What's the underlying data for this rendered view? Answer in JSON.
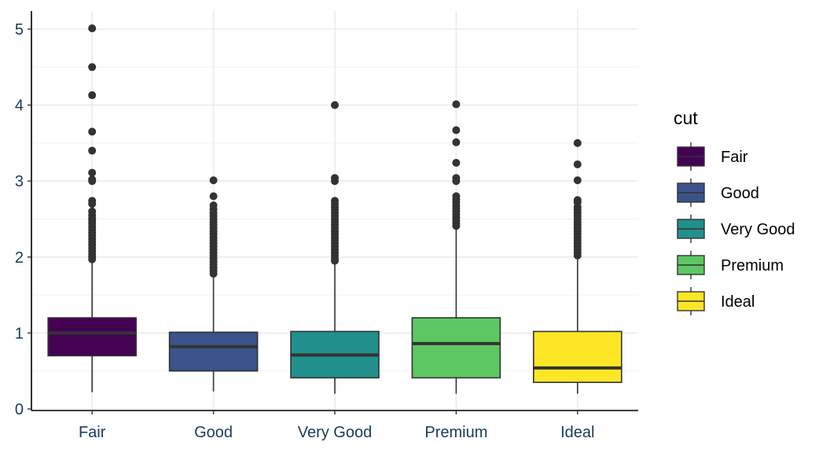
{
  "chart_data": {
    "type": "boxplot",
    "title": "",
    "xlabel": "",
    "ylabel": "",
    "ylim": [
      0,
      5.1
    ],
    "yticks": [
      0,
      1,
      2,
      3,
      4,
      5
    ],
    "grid": true,
    "legend": {
      "title": "cut",
      "position": "right"
    },
    "categories": [
      "Fair",
      "Good",
      "Very Good",
      "Premium",
      "Ideal"
    ],
    "colors": [
      "#440154",
      "#3B528B",
      "#21908C",
      "#5DC863",
      "#FDE725"
    ],
    "boxes": [
      {
        "name": "Fair",
        "min": 0.22,
        "q1": 0.7,
        "median": 1.0,
        "q3": 1.2,
        "whisker_high": 1.95,
        "outliers": [
          5.01,
          4.5,
          4.13,
          3.65,
          3.4,
          3.11,
          3.02,
          3.0,
          2.74,
          2.7,
          2.6,
          2.55,
          2.51,
          2.48,
          2.44,
          2.4,
          2.36,
          2.32,
          2.28,
          2.24,
          2.2,
          2.16,
          2.12,
          2.08,
          2.04,
          2.0,
          1.97
        ]
      },
      {
        "name": "Good",
        "min": 0.23,
        "q1": 0.5,
        "median": 0.82,
        "q3": 1.01,
        "whisker_high": 1.75,
        "outliers": [
          3.01,
          2.8,
          2.68,
          2.63,
          2.58,
          2.54,
          2.5,
          2.46,
          2.42,
          2.38,
          2.34,
          2.3,
          2.26,
          2.22,
          2.18,
          2.14,
          2.1,
          2.06,
          2.02,
          1.98,
          1.94,
          1.9,
          1.86,
          1.82,
          1.78
        ]
      },
      {
        "name": "Very Good",
        "min": 0.2,
        "q1": 0.41,
        "median": 0.71,
        "q3": 1.02,
        "whisker_high": 1.93,
        "outliers": [
          4.0,
          3.04,
          3.0,
          2.74,
          2.7,
          2.66,
          2.62,
          2.58,
          2.54,
          2.5,
          2.46,
          2.42,
          2.38,
          2.34,
          2.3,
          2.26,
          2.22,
          2.18,
          2.14,
          2.1,
          2.06,
          2.02,
          1.98,
          1.95
        ]
      },
      {
        "name": "Premium",
        "min": 0.2,
        "q1": 0.41,
        "median": 0.86,
        "q3": 1.2,
        "whisker_high": 2.39,
        "outliers": [
          4.01,
          3.67,
          3.51,
          3.24,
          3.04,
          3.0,
          2.8,
          2.76,
          2.72,
          2.68,
          2.64,
          2.6,
          2.56,
          2.52,
          2.48,
          2.44,
          2.41
        ]
      },
      {
        "name": "Ideal",
        "min": 0.2,
        "q1": 0.35,
        "median": 0.54,
        "q3": 1.02,
        "whisker_high": 2.0,
        "outliers": [
          3.5,
          3.22,
          3.01,
          2.75,
          2.72,
          2.66,
          2.62,
          2.58,
          2.54,
          2.5,
          2.46,
          2.42,
          2.38,
          2.34,
          2.3,
          2.26,
          2.22,
          2.18,
          2.14,
          2.1,
          2.06,
          2.02
        ]
      }
    ]
  }
}
